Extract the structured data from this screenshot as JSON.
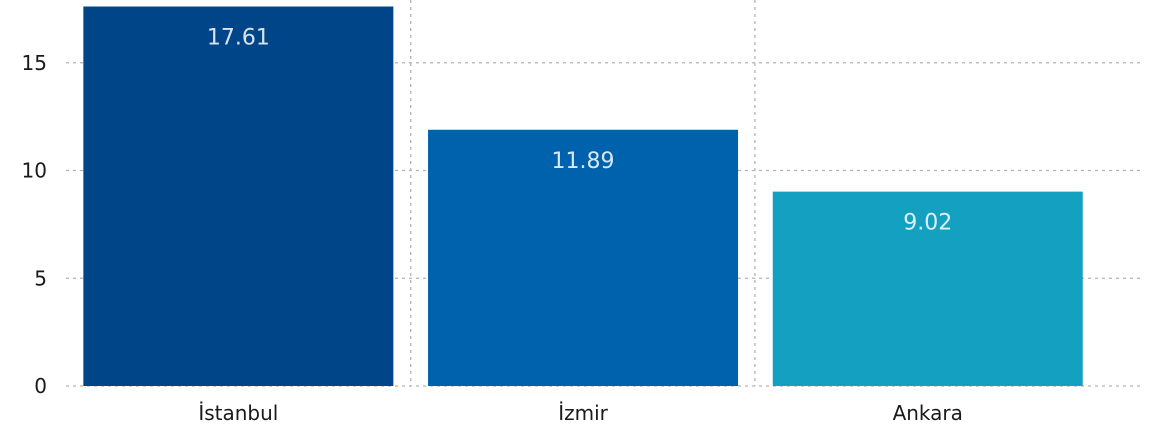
{
  "chart_data": {
    "type": "bar",
    "categories": [
      "İstanbul",
      "İzmir",
      "Ankara"
    ],
    "values": [
      17.61,
      11.89,
      9.02
    ],
    "data_labels": [
      "17.61",
      "11.89",
      "9.02"
    ],
    "colors": [
      "#004587",
      "#0062ad",
      "#14a0c1"
    ],
    "title": "",
    "xlabel": "",
    "ylabel": "",
    "ylim": [
      0,
      18
    ],
    "yticks": [
      0,
      5,
      10,
      15
    ],
    "ytick_labels": [
      "0",
      "5",
      "10",
      "15"
    ],
    "grid": true,
    "legend": "none"
  }
}
